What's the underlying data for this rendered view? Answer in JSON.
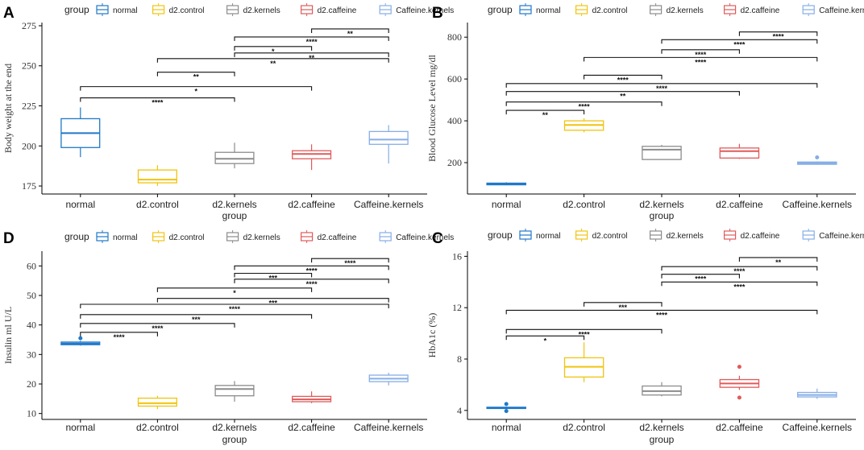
{
  "legend": {
    "title": "group",
    "groups": [
      "normal",
      "d2.control",
      "d2.kernels",
      "d2.caffeine",
      "Caffeine.kernels"
    ],
    "colors": [
      "#1f78c8",
      "#f1c40f",
      "#8c8c8c",
      "#e05a5a",
      "#86aee6"
    ]
  },
  "chart_data": [
    {
      "panel": "A",
      "type": "box",
      "categories": [
        "normal",
        "d2.control",
        "d2.kernels",
        "d2.caffeine",
        "Caffeine.kernels"
      ],
      "xlabel": "group",
      "ylabel": "Body weight at the end",
      "ylim": [
        170,
        277
      ],
      "yticks": [
        175,
        200,
        225,
        250,
        275
      ],
      "boxes": [
        {
          "min": 193,
          "q1": 199,
          "median": 208,
          "q3": 217,
          "max": 224,
          "outliers": []
        },
        {
          "min": 175,
          "q1": 177,
          "median": 179,
          "q3": 185,
          "max": 188,
          "outliers": []
        },
        {
          "min": 186,
          "q1": 189,
          "median": 192,
          "q3": 196,
          "max": 202,
          "outliers": []
        },
        {
          "min": 185,
          "q1": 192,
          "median": 195,
          "q3": 197,
          "max": 201,
          "outliers": []
        },
        {
          "min": 189,
          "q1": 201,
          "median": 204,
          "q3": 209,
          "max": 213,
          "outliers": []
        }
      ],
      "comparisons": [
        {
          "from": 3,
          "to": 4,
          "y": 273,
          "label": "**"
        },
        {
          "from": 2,
          "to": 4,
          "y": 268,
          "label": "****"
        },
        {
          "from": 2,
          "to": 3,
          "y": 262,
          "label": "*"
        },
        {
          "from": 2,
          "to": 4,
          "y": 258,
          "label": "**"
        },
        {
          "from": 1,
          "to": 4,
          "y": 254.5,
          "label": "**"
        },
        {
          "from": 1,
          "to": 2,
          "y": 246,
          "label": "**"
        },
        {
          "from": 0,
          "to": 3,
          "y": 237,
          "label": "*"
        },
        {
          "from": 0,
          "to": 2,
          "y": 230,
          "label": "****"
        }
      ]
    },
    {
      "panel": "B",
      "type": "box",
      "categories": [
        "normal",
        "d2.control",
        "d2.kernels",
        "d2.caffeine",
        "Caffeine.kernels"
      ],
      "xlabel": "group",
      "ylabel": "Blood Glucose Level mg/dl",
      "ylim": [
        50,
        870
      ],
      "yticks": [
        200,
        400,
        600,
        800
      ],
      "boxes": [
        {
          "min": 92,
          "q1": 94,
          "median": 98,
          "q3": 102,
          "max": 106,
          "outliers": []
        },
        {
          "min": 345,
          "q1": 355,
          "median": 380,
          "q3": 400,
          "max": 412,
          "outliers": []
        },
        {
          "min": 215,
          "q1": 215,
          "median": 262,
          "q3": 278,
          "max": 285,
          "outliers": []
        },
        {
          "min": 218,
          "q1": 222,
          "median": 255,
          "q3": 270,
          "max": 290,
          "outliers": []
        },
        {
          "min": 190,
          "q1": 192,
          "median": 198,
          "q3": 203,
          "max": 206,
          "outliers": [
            225
          ]
        }
      ],
      "comparisons": [
        {
          "from": 3,
          "to": 4,
          "y": 825,
          "label": "****"
        },
        {
          "from": 2,
          "to": 4,
          "y": 788,
          "label": "****"
        },
        {
          "from": 2,
          "to": 3,
          "y": 740,
          "label": "****"
        },
        {
          "from": 1,
          "to": 4,
          "y": 703,
          "label": "****"
        },
        {
          "from": 1,
          "to": 2,
          "y": 618,
          "label": "****"
        },
        {
          "from": 0,
          "to": 4,
          "y": 578,
          "label": "****"
        },
        {
          "from": 0,
          "to": 3,
          "y": 540,
          "label": "**"
        },
        {
          "from": 0,
          "to": 2,
          "y": 490,
          "label": "****"
        },
        {
          "from": 0,
          "to": 1,
          "y": 450,
          "label": "**"
        }
      ]
    },
    {
      "panel": "D",
      "type": "box",
      "categories": [
        "normal",
        "d2.control",
        "d2.kernels",
        "d2.caffeine",
        "Caffeine.kernels"
      ],
      "xlabel": "group",
      "ylabel": "Insulin ml U/L",
      "ylim": [
        8,
        65
      ],
      "yticks": [
        10,
        20,
        30,
        40,
        50,
        60
      ],
      "boxes": [
        {
          "min": 33,
          "q1": 33.3,
          "median": 33.7,
          "q3": 34.2,
          "max": 34.6,
          "outliers": [
            35.5
          ]
        },
        {
          "min": 11.5,
          "q1": 12.5,
          "median": 13.5,
          "q3": 15.2,
          "max": 16,
          "outliers": []
        },
        {
          "min": 14,
          "q1": 16,
          "median": 18.3,
          "q3": 19.5,
          "max": 21,
          "outliers": []
        },
        {
          "min": 13.5,
          "q1": 14,
          "median": 14.8,
          "q3": 15.8,
          "max": 17.5,
          "outliers": []
        },
        {
          "min": 19.5,
          "q1": 20.8,
          "median": 21.8,
          "q3": 23,
          "max": 23.8,
          "outliers": []
        }
      ],
      "comparisons": [
        {
          "from": 3,
          "to": 4,
          "y": 62.5,
          "label": "****"
        },
        {
          "from": 2,
          "to": 4,
          "y": 60,
          "label": "****"
        },
        {
          "from": 2,
          "to": 3,
          "y": 57.5,
          "label": "***"
        },
        {
          "from": 2,
          "to": 4,
          "y": 55.5,
          "label": "****"
        },
        {
          "from": 1,
          "to": 3,
          "y": 52.5,
          "label": "*"
        },
        {
          "from": 1,
          "to": 4,
          "y": 49,
          "label": "***"
        },
        {
          "from": 0,
          "to": 4,
          "y": 47,
          "label": "****"
        },
        {
          "from": 0,
          "to": 3,
          "y": 43.5,
          "label": "***"
        },
        {
          "from": 0,
          "to": 2,
          "y": 40.5,
          "label": "****"
        },
        {
          "from": 0,
          "to": 1,
          "y": 37.5,
          "label": "****"
        }
      ]
    },
    {
      "panel": "C",
      "type": "box",
      "categories": [
        "normal",
        "d2.control",
        "d2.kernels",
        "d2.caffeine",
        "Caffeine.kernels"
      ],
      "xlabel": "group",
      "ylabel": "HbA1c (%)",
      "ylim": [
        3.3,
        16.4
      ],
      "yticks": [
        4,
        8,
        12,
        16
      ],
      "boxes": [
        {
          "min": 4.1,
          "q1": 4.15,
          "median": 4.2,
          "q3": 4.25,
          "max": 4.3,
          "outliers": [
            4.5,
            3.95
          ]
        },
        {
          "min": 6.2,
          "q1": 6.6,
          "median": 7.4,
          "q3": 8.1,
          "max": 9.3,
          "outliers": []
        },
        {
          "min": 5.1,
          "q1": 5.2,
          "median": 5.5,
          "q3": 5.9,
          "max": 6.2,
          "outliers": []
        },
        {
          "min": 5.6,
          "q1": 5.8,
          "median": 6.1,
          "q3": 6.4,
          "max": 6.7,
          "outliers": [
            7.4,
            5.0
          ]
        },
        {
          "min": 4.9,
          "q1": 5.05,
          "median": 5.2,
          "q3": 5.4,
          "max": 5.7,
          "outliers": []
        }
      ],
      "comparisons": [
        {
          "from": 3,
          "to": 4,
          "y": 15.9,
          "label": "**"
        },
        {
          "from": 2,
          "to": 4,
          "y": 15.2,
          "label": "****"
        },
        {
          "from": 2,
          "to": 3,
          "y": 14.6,
          "label": "****"
        },
        {
          "from": 2,
          "to": 4,
          "y": 14.0,
          "label": "****"
        },
        {
          "from": 1,
          "to": 2,
          "y": 12.4,
          "label": "***"
        },
        {
          "from": 0,
          "to": 4,
          "y": 11.8,
          "label": "****"
        },
        {
          "from": 0,
          "to": 2,
          "y": 10.3,
          "label": "****"
        },
        {
          "from": 0,
          "to": 1,
          "y": 9.8,
          "label": "*"
        }
      ]
    }
  ]
}
